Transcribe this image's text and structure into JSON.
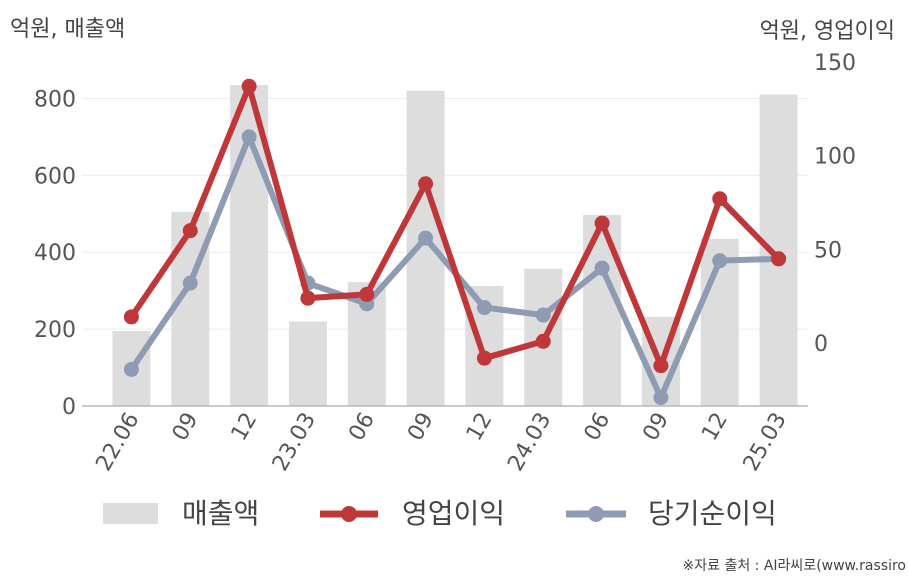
{
  "chart_data": {
    "type": "bar+line",
    "left_unit": "억원, 매출액",
    "right_unit": "억원, 영업이익",
    "categories": [
      "22.06",
      "09",
      "12",
      "23.03",
      "06",
      "09",
      "12",
      "24.03",
      "06",
      "09",
      "12",
      "25.03"
    ],
    "y_left": {
      "range": [
        0,
        900
      ],
      "ticks": [
        0,
        200,
        400,
        600,
        800
      ]
    },
    "y_right": {
      "range": [
        -33.5,
        151
      ],
      "ticks": [
        0,
        50,
        100,
        150
      ]
    },
    "series": [
      {
        "name": "매출액",
        "type": "bar",
        "axis": "left",
        "color": "#dddddd",
        "values": [
          195,
          505,
          835,
          220,
          322,
          820,
          312,
          357,
          497,
          232,
          435,
          810
        ]
      },
      {
        "name": "영업이익",
        "type": "line",
        "axis": "right",
        "color": "#c0373a",
        "values": [
          14,
          60,
          137,
          24,
          26,
          85,
          -8,
          1,
          64,
          -12,
          77,
          45
        ]
      },
      {
        "name": "당기순이익",
        "type": "line",
        "axis": "right",
        "color": "#8f9bb3",
        "values": [
          -14,
          32,
          110,
          32,
          21,
          56,
          19,
          15,
          40,
          -29,
          44,
          45
        ]
      }
    ],
    "grid": true,
    "legend": "bottom"
  },
  "source_note": "※자료 출처 : AI라씨로(www.rassiro"
}
